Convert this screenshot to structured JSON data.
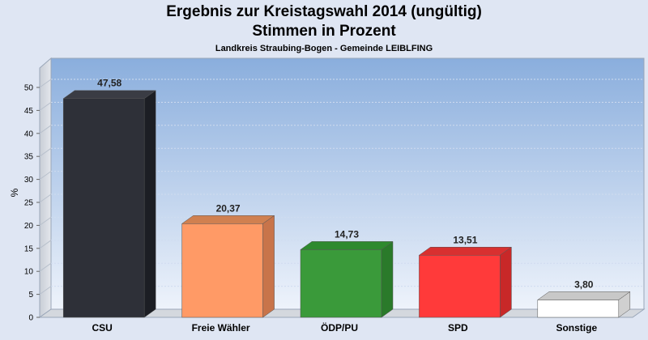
{
  "header": {
    "title_line1": "Ergebnis zur Kreistagswahl 2014 (ungültig)",
    "title_line2": "Stimmen in Prozent",
    "subtitle": "Landkreis Straubing-Bogen - Gemeinde LEIBLFING"
  },
  "chart_data": {
    "type": "bar",
    "title": "Ergebnis zur Kreistagswahl 2014 (ungültig) Stimmen in Prozent",
    "subtitle": "Landkreis Straubing-Bogen - Gemeinde LEIBLFING",
    "ylabel": "%",
    "xlabel": "",
    "ylim": [
      0,
      50
    ],
    "yticks": [
      0,
      5,
      10,
      15,
      20,
      25,
      30,
      35,
      40,
      45,
      50
    ],
    "grid": true,
    "categories": [
      "CSU",
      "Freie Wähler",
      "ÖDP/PU",
      "SPD",
      "Sonstige"
    ],
    "values": [
      47.58,
      20.37,
      14.73,
      13.51,
      3.8
    ],
    "value_labels": [
      "47,58",
      "20,37",
      "14,73",
      "13,51",
      "3,80"
    ],
    "colors": [
      "#2e3038",
      "#ff9a66",
      "#3a9a3a",
      "#ff3a3a",
      "#ffffff"
    ],
    "side_colors": [
      "#1c1e24",
      "#c8744a",
      "#2a7a2a",
      "#c82828",
      "#d0d0d0"
    ],
    "top_colors": [
      "#3a3c44",
      "#d08050",
      "#2e8a2e",
      "#d83030",
      "#c8c8c8"
    ]
  }
}
